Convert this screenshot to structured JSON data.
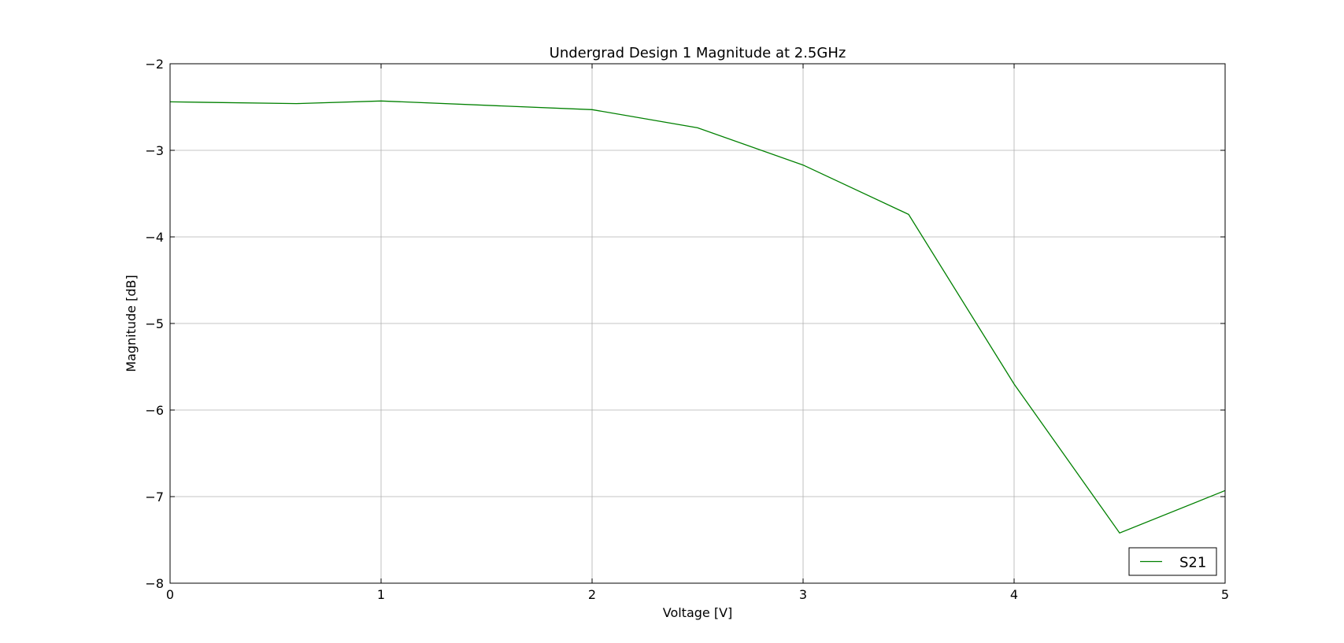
{
  "chart_data": {
    "type": "line",
    "title": "Undergrad Design 1 Magnitude at 2.5GHz",
    "xlabel": "Voltage [V]",
    "ylabel": "Magnitude [dB]",
    "xlim": [
      0,
      5
    ],
    "ylim": [
      -8,
      -2
    ],
    "x_ticks": [
      0,
      1,
      2,
      3,
      4,
      5
    ],
    "x_tick_labels": [
      "0",
      "1",
      "2",
      "3",
      "4",
      "5"
    ],
    "y_ticks": [
      -8,
      -7,
      -6,
      -5,
      -4,
      -3,
      -2
    ],
    "y_tick_labels": [
      "−8",
      "−7",
      "−6",
      "−5",
      "−4",
      "−3",
      "−2"
    ],
    "grid": true,
    "legend_position": "lower-right",
    "series": [
      {
        "name": "S21",
        "color": "#008000",
        "x": [
          0,
          0.6,
          1.0,
          2.0,
          2.5,
          3.0,
          3.5,
          4.0,
          4.5,
          5.0
        ],
        "y": [
          -2.44,
          -2.46,
          -2.43,
          -2.53,
          -2.74,
          -3.17,
          -3.74,
          -5.7,
          -7.42,
          -6.93
        ]
      }
    ]
  }
}
